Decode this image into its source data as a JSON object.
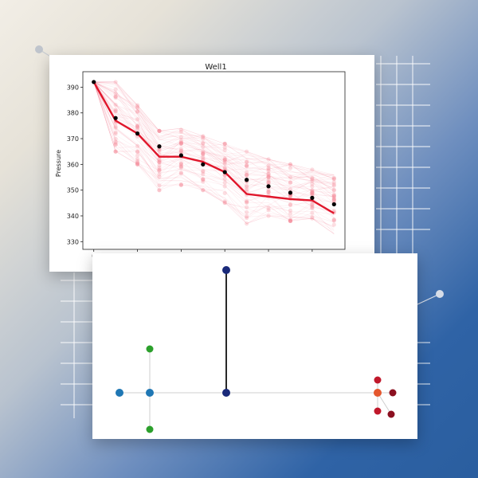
{
  "colors": {
    "band": "#e8112d",
    "band_light": "#f48a98",
    "median": "#e0162b",
    "observed": "#000000"
  },
  "chart_data": {
    "type": "line",
    "title": "Well1",
    "xlabel": "",
    "ylabel": "Pressure",
    "xlim": [
      -0.5,
      11.5
    ],
    "ylim": [
      327,
      396
    ],
    "x_ticks": [
      0,
      2,
      4,
      6,
      8,
      10
    ],
    "y_ticks": [
      330,
      340,
      350,
      360,
      370,
      380,
      390
    ],
    "grid": false,
    "series": [
      {
        "role": "ensemble_median",
        "x": [
          0,
          1,
          2,
          3,
          4,
          5,
          6,
          7,
          8,
          9,
          10,
          11
        ],
        "values": [
          392,
          377,
          372,
          363,
          363,
          361,
          357,
          348.5,
          347.5,
          346.5,
          346,
          341
        ]
      },
      {
        "role": "observed_points",
        "x": [
          0,
          1,
          2,
          3,
          4,
          5,
          6,
          7,
          8,
          9,
          10,
          11
        ],
        "values": [
          392,
          378,
          372,
          367,
          363.5,
          360,
          357,
          354,
          351.5,
          349,
          347,
          344.5
        ]
      },
      {
        "role": "ensemble_spread",
        "x": [
          0,
          1,
          2,
          3,
          4,
          5,
          6,
          7,
          8,
          9,
          10,
          11
        ],
        "low": [
          392,
          365,
          360,
          350,
          352,
          350,
          345,
          337,
          340,
          338,
          339,
          333
        ],
        "high": [
          392,
          392,
          383,
          373,
          374,
          371,
          368,
          365,
          362,
          360,
          358,
          356
        ]
      }
    ]
  },
  "graph": {
    "nodes": [
      {
        "id": "n1",
        "color": "#1f77b4"
      },
      {
        "id": "n2",
        "color": "#1f77b4"
      },
      {
        "id": "n3",
        "color": "#2ca02c"
      },
      {
        "id": "n4",
        "color": "#2ca02c"
      },
      {
        "id": "n5",
        "color": "#1a2a7a"
      },
      {
        "id": "n6",
        "color": "#1a2a7a"
      },
      {
        "id": "n7",
        "color": "#e4572e"
      },
      {
        "id": "n8",
        "color": "#c0182b"
      },
      {
        "id": "n9",
        "color": "#c0182b"
      },
      {
        "id": "n10",
        "color": "#8b1020"
      },
      {
        "id": "n11",
        "color": "#8b1020"
      }
    ]
  }
}
